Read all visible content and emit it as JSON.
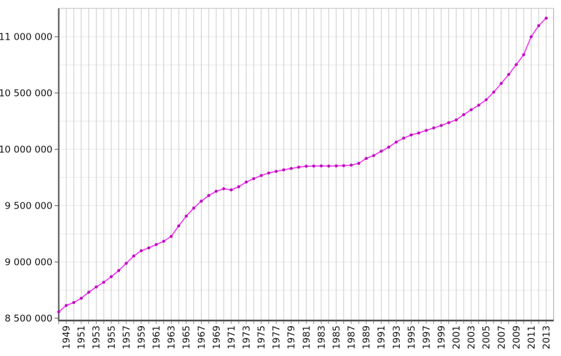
{
  "chart_data": {
    "type": "line",
    "title": "",
    "xlabel": "",
    "ylabel": "",
    "legend": "none",
    "grid": true,
    "xlim": [
      1948,
      2014
    ],
    "ylim": [
      8480000,
      11252000
    ],
    "y_minor_step": 250000,
    "x_label_rotation": -90,
    "years": [
      1948,
      1949,
      1950,
      1951,
      1952,
      1953,
      1954,
      1955,
      1956,
      1957,
      1958,
      1959,
      1960,
      1961,
      1962,
      1963,
      1964,
      1965,
      1966,
      1967,
      1968,
      1969,
      1970,
      1971,
      1972,
      1973,
      1974,
      1975,
      1976,
      1977,
      1978,
      1979,
      1980,
      1981,
      1982,
      1983,
      1984,
      1985,
      1986,
      1987,
      1988,
      1989,
      1990,
      1991,
      1992,
      1993,
      1994,
      1995,
      1996,
      1997,
      1998,
      1999,
      2000,
      2001,
      2002,
      2003,
      2004,
      2005,
      2006,
      2007,
      2008,
      2009,
      2010,
      2011,
      2012,
      2013
    ],
    "values": [
      8557000,
      8614000,
      8640000,
      8678000,
      8731000,
      8778000,
      8820000,
      8869000,
      8924000,
      8988000,
      9053000,
      9100000,
      9125000,
      9155000,
      9184000,
      9227000,
      9320000,
      9407000,
      9478000,
      9540000,
      9590000,
      9628000,
      9650000,
      9640000,
      9668000,
      9710000,
      9740000,
      9768000,
      9790000,
      9805000,
      9818000,
      9830000,
      9842000,
      9850000,
      9852000,
      9853000,
      9852000,
      9853000,
      9855000,
      9860000,
      9875000,
      9920000,
      9945000,
      9983000,
      10020000,
      10065000,
      10100000,
      10128000,
      10145000,
      10168000,
      10190000,
      10212000,
      10237000,
      10262000,
      10308000,
      10352000,
      10392000,
      10440000,
      10508000,
      10585000,
      10665000,
      10752000,
      10840000,
      11000000,
      11098000,
      11165000
    ],
    "x_tick_labels": [
      "1949",
      "1951",
      "1953",
      "1955",
      "1957",
      "1959",
      "1961",
      "1963",
      "1965",
      "1967",
      "1969",
      "1971",
      "1973",
      "1975",
      "1977",
      "1979",
      "1981",
      "1983",
      "1985",
      "1987",
      "1989",
      "1991",
      "1993",
      "1995",
      "1997",
      "1999",
      "2001",
      "2003",
      "2005",
      "2007",
      "2009",
      "2011",
      "2013"
    ],
    "y_ticks": [
      {
        "value": 11000000,
        "label": "11 000 000"
      },
      {
        "value": 10500000,
        "label": "10 500 000"
      },
      {
        "value": 10000000,
        "label": "10 000 000"
      },
      {
        "value": 9500000,
        "label": "9 500 000"
      },
      {
        "value": 9000000,
        "label": "9 000 000"
      },
      {
        "value": 8500000,
        "label": "8 500 000"
      }
    ],
    "colors": {
      "line": "#ee33ee",
      "marker": "#bf0fbf",
      "axis": "#4f4f4f",
      "grid_vertical": "#cccccc",
      "grid_horizontal": "#e8e8e8",
      "border_top": "#c4c4c4",
      "border_right": "#ababab",
      "tick_x": "#8a8a8a",
      "tick_text": "#111111",
      "background": "#ffffff"
    }
  }
}
